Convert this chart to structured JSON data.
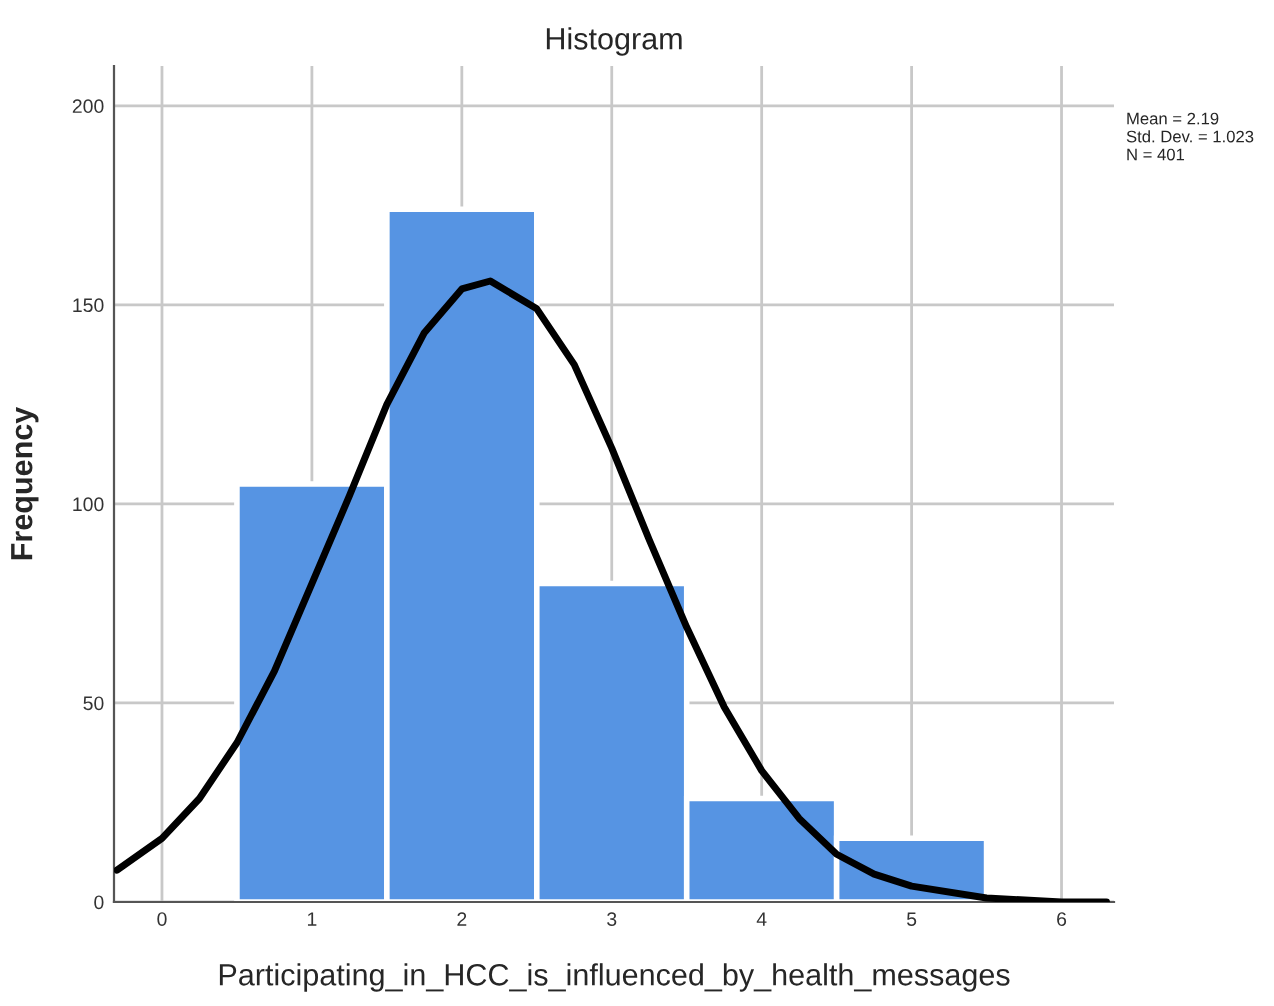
{
  "chart_data": {
    "type": "histogram",
    "title": "Histogram",
    "xlabel": "Participating_in_HCC_is_influenced_by_health_messages",
    "ylabel": "Frequency",
    "bins": [
      0.5,
      1.5,
      2.5,
      3.5,
      4.5,
      5.5
    ],
    "values": [
      105,
      174,
      80,
      26,
      16
    ],
    "color": "#5694e3",
    "series": [
      {
        "type": "line",
        "color": "#000000",
        "x": [
          -0.3,
          0,
          0.25,
          0.5,
          0.75,
          1,
          1.25,
          1.5,
          1.75,
          2,
          2.19,
          2.5,
          2.75,
          3,
          3.25,
          3.5,
          3.75,
          4,
          4.25,
          4.5,
          4.75,
          5,
          5.5,
          6,
          6.3
        ],
        "values": [
          8,
          16,
          26,
          40,
          58,
          80,
          102,
          125,
          143,
          154,
          156,
          149,
          135,
          114,
          91,
          69,
          49,
          33,
          21,
          12,
          7,
          4,
          1,
          0,
          0
        ]
      }
    ],
    "xlim": [
      -0.32,
      6.35
    ],
    "xticks": [
      0,
      1,
      2,
      3,
      4,
      5,
      6
    ],
    "ylim": [
      0,
      210
    ],
    "yticks": [
      0,
      50,
      100,
      150,
      200
    ],
    "grid": true,
    "annotations": [
      "Mean = 2.19",
      "Std. Dev. = 1.023",
      "N = 401"
    ]
  }
}
